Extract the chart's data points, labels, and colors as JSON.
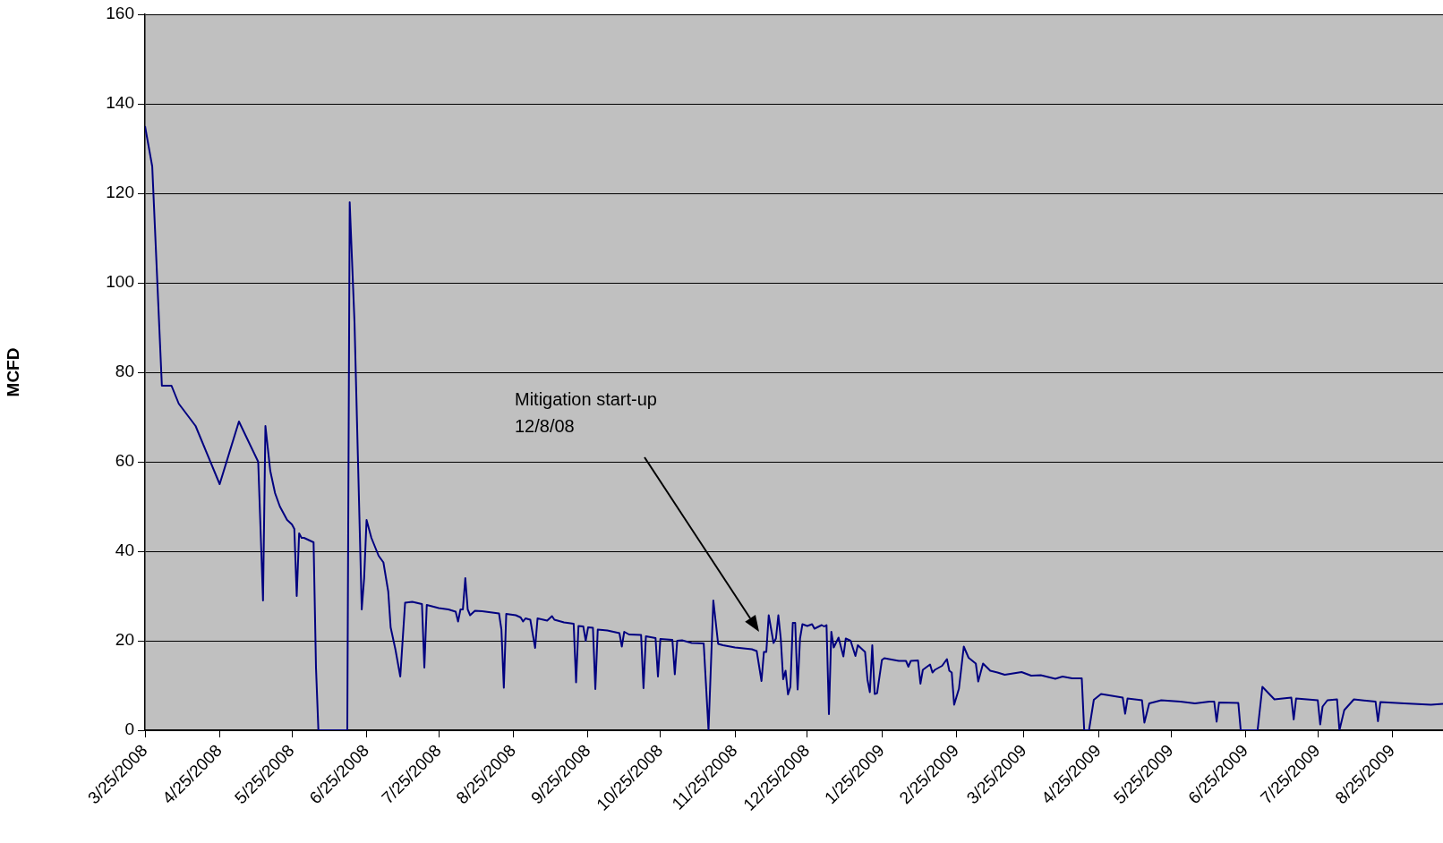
{
  "chart_data": {
    "type": "line",
    "ylabel": "MCFD",
    "color": "#000080",
    "marker": "none",
    "grid": "y",
    "xlim": [
      "2008-03-25",
      "2009-09-15"
    ],
    "ylim": [
      0,
      160
    ],
    "yticks": [
      0,
      20,
      40,
      60,
      80,
      100,
      120,
      140,
      160
    ],
    "xticks": [
      {
        "value": "2008-03-25",
        "label": "3/25/2008"
      },
      {
        "value": "2008-04-25",
        "label": "4/25/2008"
      },
      {
        "value": "2008-05-25",
        "label": "5/25/2008"
      },
      {
        "value": "2008-06-25",
        "label": "6/25/2008"
      },
      {
        "value": "2008-07-25",
        "label": "7/25/2008"
      },
      {
        "value": "2008-08-25",
        "label": "8/25/2008"
      },
      {
        "value": "2008-09-25",
        "label": "9/25/2008"
      },
      {
        "value": "2008-10-25",
        "label": "10/25/2008"
      },
      {
        "value": "2008-11-25",
        "label": "11/25/2008"
      },
      {
        "value": "2008-12-25",
        "label": "12/25/2008"
      },
      {
        "value": "2009-01-25",
        "label": "1/25/2009"
      },
      {
        "value": "2009-02-25",
        "label": "2/25/2009"
      },
      {
        "value": "2009-03-25",
        "label": "3/25/2009"
      },
      {
        "value": "2009-04-25",
        "label": "4/25/2009"
      },
      {
        "value": "2009-05-25",
        "label": "5/25/2009"
      },
      {
        "value": "2009-06-25",
        "label": "6/25/2009"
      },
      {
        "value": "2009-07-25",
        "label": "7/25/2009"
      },
      {
        "value": "2009-08-25",
        "label": "8/25/2009"
      }
    ],
    "annotations": [
      "Mitigation start-up\n12/8/08"
    ],
    "x": [
      "2008-03-25",
      "2008-03-28",
      "2008-04-01",
      "2008-04-05",
      "2008-04-08",
      "2008-04-15",
      "2008-04-25",
      "2008-05-03",
      "2008-05-11",
      "2008-05-13",
      "2008-05-14",
      "2008-05-16",
      "2008-05-18",
      "2008-05-20",
      "2008-05-23",
      "2008-05-25",
      "2008-05-26",
      "2008-05-27",
      "2008-05-28",
      "2008-05-29",
      "2008-05-30",
      "2008-06-01",
      "2008-06-03",
      "2008-06-04",
      "2008-06-05",
      "2008-06-17",
      "2008-06-18",
      "2008-06-20",
      "2008-06-23",
      "2008-06-24",
      "2008-06-25",
      "2008-06-27",
      "2008-06-30",
      "2008-07-02",
      "2008-07-04",
      "2008-07-05",
      "2008-07-07",
      "2008-07-09",
      "2008-07-11",
      "2008-07-14",
      "2008-07-18",
      "2008-07-19",
      "2008-07-20",
      "2008-07-25",
      "2008-07-29",
      "2008-08-01",
      "2008-08-02",
      "2008-08-03",
      "2008-08-04",
      "2008-08-05",
      "2008-08-06",
      "2008-08-07",
      "2008-08-09",
      "2008-08-12",
      "2008-08-19",
      "2008-08-20",
      "2008-08-21",
      "2008-08-22",
      "2008-08-26",
      "2008-08-28",
      "2008-08-29",
      "2008-08-30",
      "2008-09-01",
      "2008-09-03",
      "2008-09-04",
      "2008-09-08",
      "2008-09-10",
      "2008-09-11",
      "2008-09-15",
      "2008-09-19",
      "2008-09-20",
      "2008-09-21",
      "2008-09-23",
      "2008-09-24",
      "2008-09-25",
      "2008-09-27",
      "2008-09-28",
      "2008-09-29",
      "2008-10-03",
      "2008-10-08",
      "2008-10-09",
      "2008-10-10",
      "2008-10-12",
      "2008-10-17",
      "2008-10-18",
      "2008-10-19",
      "2008-10-23",
      "2008-10-24",
      "2008-10-25",
      "2008-10-30",
      "2008-10-31",
      "2008-11-01",
      "2008-11-03",
      "2008-11-07",
      "2008-11-12",
      "2008-11-14",
      "2008-11-16",
      "2008-11-18",
      "2008-11-20",
      "2008-11-25",
      "2008-12-02",
      "2008-12-04",
      "2008-12-06",
      "2008-12-07",
      "2008-12-08",
      "2008-12-09",
      "2008-12-11",
      "2008-12-12",
      "2008-12-13",
      "2008-12-14",
      "2008-12-15",
      "2008-12-16",
      "2008-12-17",
      "2008-12-18",
      "2008-12-19",
      "2008-12-20",
      "2008-12-21",
      "2008-12-22",
      "2008-12-23",
      "2008-12-25",
      "2008-12-27",
      "2008-12-28",
      "2008-12-31",
      "2009-01-01",
      "2009-01-02",
      "2009-01-03",
      "2009-01-04",
      "2009-01-05",
      "2009-01-07",
      "2009-01-09",
      "2009-01-10",
      "2009-01-12",
      "2009-01-14",
      "2009-01-15",
      "2009-01-18",
      "2009-01-19",
      "2009-01-20",
      "2009-01-21",
      "2009-01-22",
      "2009-01-23",
      "2009-01-25",
      "2009-01-26",
      "2009-02-01",
      "2009-02-04",
      "2009-02-05",
      "2009-02-06",
      "2009-02-09",
      "2009-02-10",
      "2009-02-11",
      "2009-02-14",
      "2009-02-15",
      "2009-02-16",
      "2009-02-19",
      "2009-02-21",
      "2009-02-22",
      "2009-02-23",
      "2009-02-24",
      "2009-02-26",
      "2009-02-28",
      "2009-03-02",
      "2009-03-05",
      "2009-03-06",
      "2009-03-08",
      "2009-03-11",
      "2009-03-14",
      "2009-03-17",
      "2009-03-24",
      "2009-03-28",
      "2009-04-01",
      "2009-04-07",
      "2009-04-10",
      "2009-04-14",
      "2009-04-18",
      "2009-04-19",
      "2009-04-21",
      "2009-04-23",
      "2009-04-26",
      "2009-05-05",
      "2009-05-06",
      "2009-05-07",
      "2009-05-13",
      "2009-05-14",
      "2009-05-16",
      "2009-05-21",
      "2009-05-29",
      "2009-06-04",
      "2009-06-10",
      "2009-06-12",
      "2009-06-13",
      "2009-06-14",
      "2009-06-22",
      "2009-06-23",
      "2009-06-30",
      "2009-07-02",
      "2009-07-07",
      "2009-07-14",
      "2009-07-15",
      "2009-07-16",
      "2009-07-25",
      "2009-07-26",
      "2009-07-27",
      "2009-07-29",
      "2009-08-02",
      "2009-08-03",
      "2009-08-05",
      "2009-08-09",
      "2009-08-18",
      "2009-08-19",
      "2009-08-20",
      "2009-08-30",
      "2009-09-10",
      "2009-09-15"
    ],
    "values": [
      135,
      126,
      77,
      77,
      73,
      68,
      55,
      69,
      60,
      29,
      68,
      58,
      53,
      50,
      47,
      46,
      45,
      30,
      44,
      43,
      43,
      42.5,
      42,
      14,
      0,
      0,
      118,
      91,
      27,
      34,
      47,
      43,
      39,
      37.5,
      31,
      23,
      18,
      12,
      28.5,
      28.7,
      28.2,
      14,
      28,
      27.3,
      27,
      26.5,
      24.3,
      27,
      27,
      34,
      27,
      25.7,
      26.7,
      26.6,
      26.1,
      22.5,
      9.5,
      26,
      25.7,
      25.2,
      24.3,
      25,
      24.7,
      18.4,
      25,
      24.5,
      25.5,
      24.7,
      24.1,
      23.8,
      10.7,
      23.3,
      23.2,
      20,
      23,
      22.9,
      9.2,
      22.5,
      22.3,
      21.7,
      18.7,
      22,
      21.4,
      21.3,
      9.4,
      21,
      20.6,
      12,
      20.4,
      20.2,
      12.5,
      20,
      20.1,
      19.5,
      19.4,
      0,
      29,
      19.3,
      19,
      18.5,
      18.1,
      17.7,
      11,
      17.5,
      17.5,
      25.7,
      19.5,
      20.5,
      25.7,
      20.5,
      11.4,
      13.3,
      8,
      9.7,
      24,
      24,
      9.1,
      20.5,
      23.7,
      23.3,
      23.7,
      22.7,
      23.5,
      23.2,
      23.5,
      3.6,
      22,
      18.5,
      20.7,
      16.5,
      20.5,
      20,
      16.6,
      19,
      17.5,
      11.3,
      8.5,
      19,
      8.1,
      8.3,
      15.7,
      16.1,
      15.5,
      15.5,
      14.2,
      15.5,
      15.6,
      10.4,
      13.5,
      14.7,
      12.9,
      13.5,
      14.4,
      15.9,
      13.3,
      12.9,
      5.7,
      9.3,
      18.7,
      16.2,
      14.9,
      10.9,
      14.9,
      13.3,
      12.9,
      12.4,
      13,
      12.2,
      12.3,
      11.5,
      12,
      11.6,
      11.6,
      0,
      0,
      6.8,
      8.1,
      7.3,
      3.7,
      7.1,
      6.7,
      1.7,
      6,
      6.7,
      6.4,
      6,
      6.4,
      6.4,
      1.9,
      6.2,
      6.1,
      0,
      0,
      9.7,
      6.9,
      7.3,
      2.4,
      7.1,
      6.7,
      1.3,
      5.3,
      6.7,
      6.9,
      0,
      4.5,
      6.9,
      6.4,
      2,
      6.3,
      6,
      5.7,
      5.9
    ]
  }
}
